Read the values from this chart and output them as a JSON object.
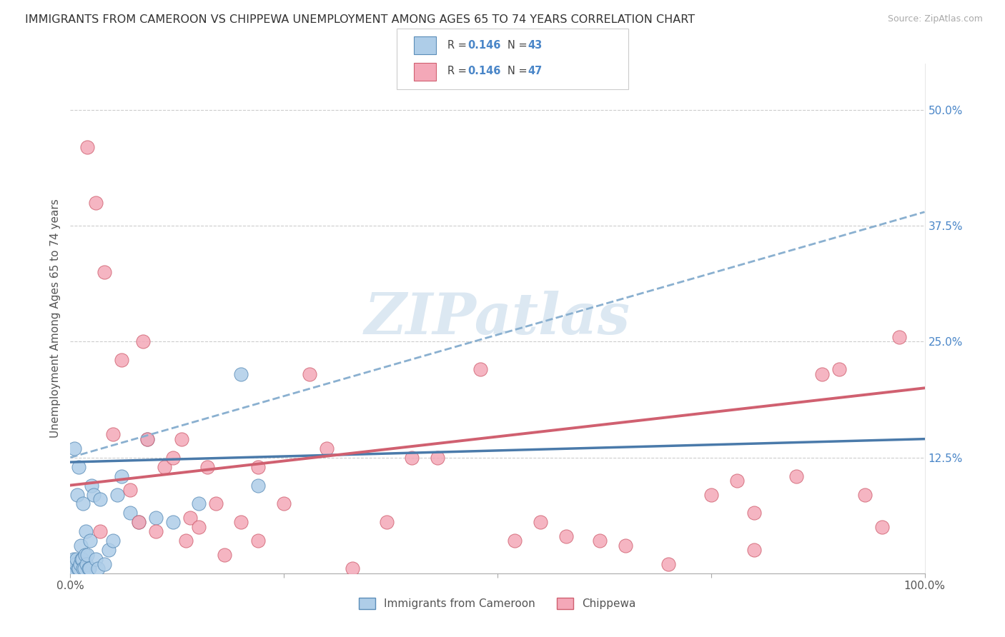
{
  "title": "IMMIGRANTS FROM CAMEROON VS CHIPPEWA UNEMPLOYMENT AMONG AGES 65 TO 74 YEARS CORRELATION CHART",
  "source": "Source: ZipAtlas.com",
  "ylabel": "Unemployment Among Ages 65 to 74 years",
  "legend_label1": "Immigrants from Cameroon",
  "legend_label2": "Chippewa",
  "r1": "0.146",
  "n1": "43",
  "r2": "0.146",
  "n2": "47",
  "xlim": [
    0,
    100
  ],
  "ylim": [
    0,
    55
  ],
  "xtick_pos": [
    0,
    25,
    50,
    75,
    100
  ],
  "xtick_labels": [
    "0.0%",
    "",
    "",
    "",
    "100.0%"
  ],
  "ytick_values": [
    12.5,
    25.0,
    37.5,
    50.0
  ],
  "color_blue_fill": "#aecde8",
  "color_blue_edge": "#5b8db8",
  "color_blue_line": "#4a7aaa",
  "color_blue_dash": "#8ab0d0",
  "color_pink_fill": "#f4a8b8",
  "color_pink_edge": "#d06070",
  "color_pink_line": "#d06070",
  "watermark": "ZIPatlas",
  "watermark_color": "#dce8f2",
  "title_fontsize": 11.5,
  "source_fontsize": 9,
  "blue_x": [
    0.1,
    0.2,
    0.3,
    0.4,
    0.5,
    0.6,
    0.7,
    0.8,
    0.9,
    1.0,
    1.0,
    1.1,
    1.2,
    1.3,
    1.4,
    1.5,
    1.5,
    1.6,
    1.7,
    1.8,
    1.9,
    2.0,
    2.1,
    2.2,
    2.3,
    2.5,
    2.7,
    3.0,
    3.2,
    3.5,
    4.0,
    4.5,
    5.0,
    5.5,
    6.0,
    7.0,
    8.0,
    9.0,
    10.0,
    12.0,
    15.0,
    20.0,
    22.0
  ],
  "blue_y": [
    0.5,
    1.0,
    0.5,
    1.5,
    13.5,
    1.0,
    1.5,
    8.5,
    0.5,
    0.5,
    11.5,
    1.0,
    3.0,
    1.5,
    1.5,
    7.5,
    0.5,
    0.5,
    2.0,
    4.5,
    1.0,
    2.0,
    0.5,
    0.5,
    3.5,
    9.5,
    8.5,
    1.5,
    0.5,
    8.0,
    1.0,
    2.5,
    3.5,
    8.5,
    10.5,
    6.5,
    5.5,
    14.5,
    6.0,
    5.5,
    7.5,
    21.5,
    9.5
  ],
  "pink_x": [
    2.0,
    3.0,
    4.0,
    5.0,
    6.0,
    7.0,
    8.0,
    9.0,
    10.0,
    11.0,
    12.0,
    13.0,
    14.0,
    15.0,
    16.0,
    17.0,
    18.0,
    20.0,
    22.0,
    25.0,
    28.0,
    30.0,
    33.0,
    37.0,
    40.0,
    43.0,
    48.0,
    52.0,
    55.0,
    58.0,
    62.0,
    65.0,
    70.0,
    75.0,
    78.0,
    80.0,
    85.0,
    88.0,
    90.0,
    93.0,
    95.0,
    97.0,
    3.5,
    8.5,
    13.5,
    22.0,
    80.0
  ],
  "pink_y": [
    46.0,
    40.0,
    32.5,
    15.0,
    23.0,
    9.0,
    5.5,
    14.5,
    4.5,
    11.5,
    12.5,
    14.5,
    6.0,
    5.0,
    11.5,
    7.5,
    2.0,
    5.5,
    11.5,
    7.5,
    21.5,
    13.5,
    0.5,
    5.5,
    12.5,
    12.5,
    22.0,
    3.5,
    5.5,
    4.0,
    3.5,
    3.0,
    1.0,
    8.5,
    10.0,
    6.5,
    10.5,
    21.5,
    22.0,
    8.5,
    5.0,
    25.5,
    4.5,
    25.0,
    3.5,
    3.5,
    2.5
  ],
  "blue_line_x0": 0,
  "blue_line_y0": 12.0,
  "blue_line_x1": 100,
  "blue_line_y1": 14.5,
  "blue_dash_x0": 0,
  "blue_dash_y0": 12.5,
  "blue_dash_x1": 100,
  "blue_dash_y1": 39.0,
  "pink_line_x0": 0,
  "pink_line_y0": 9.5,
  "pink_line_x1": 100,
  "pink_line_y1": 20.0
}
